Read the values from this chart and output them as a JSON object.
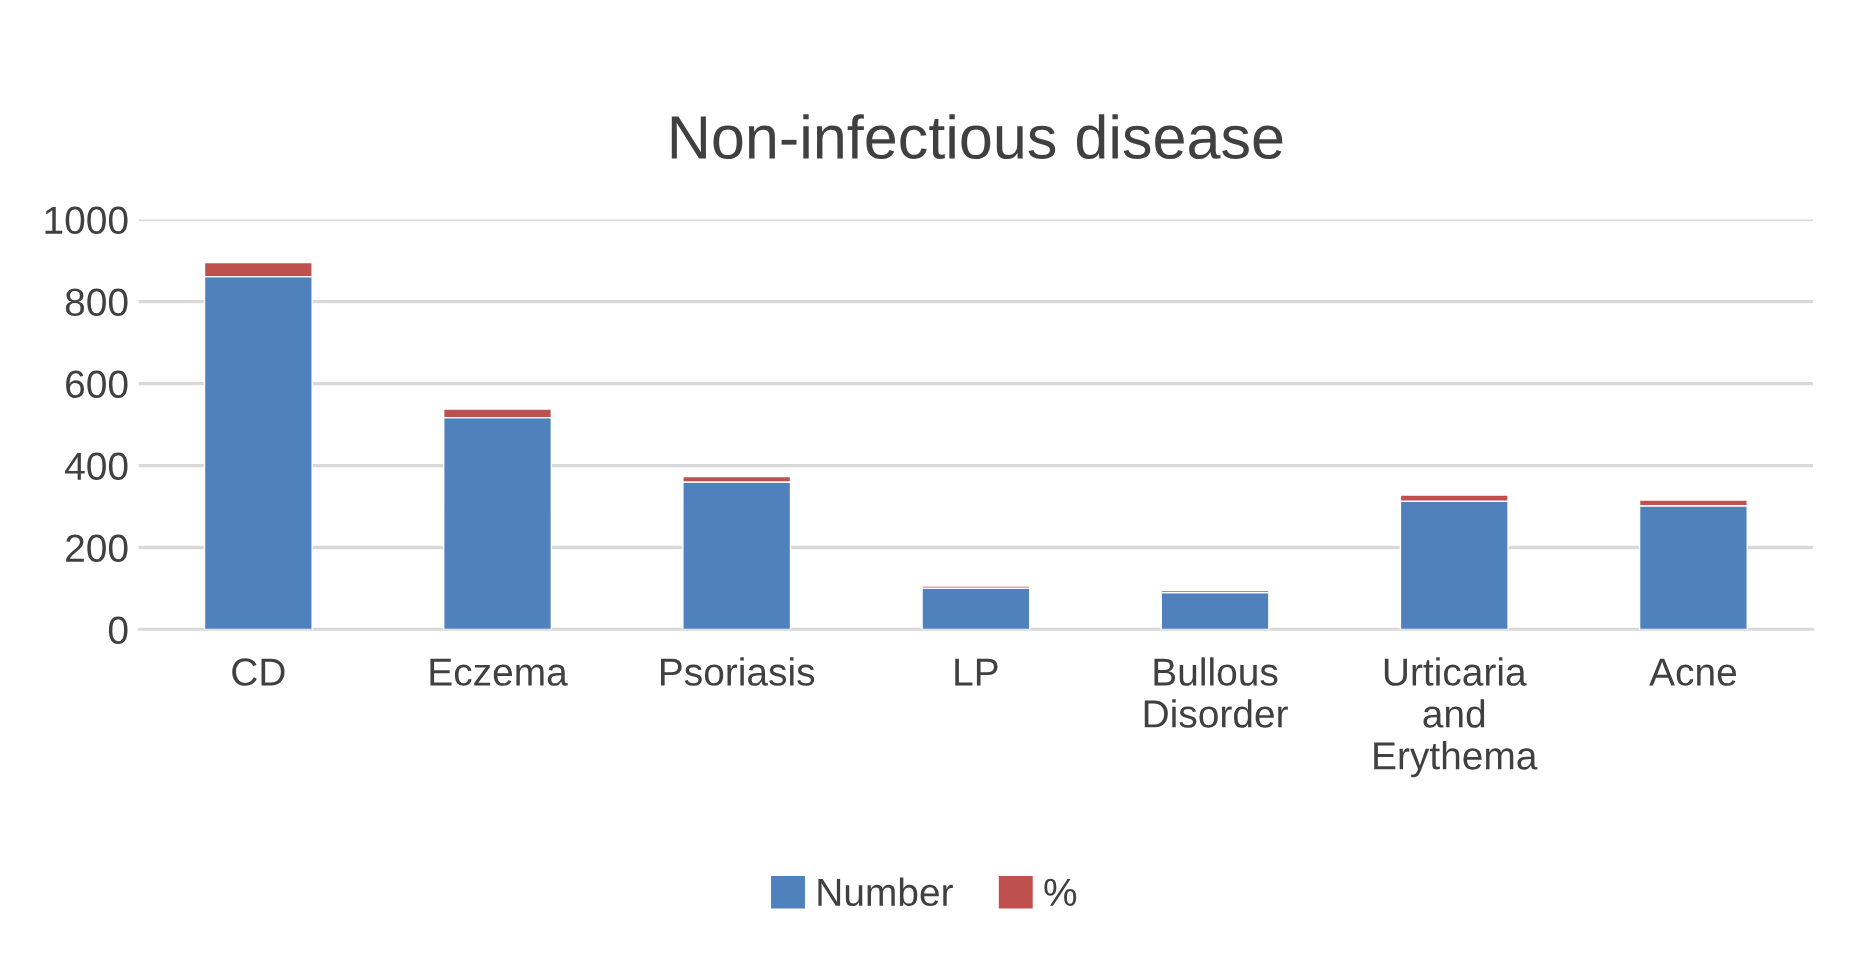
{
  "chart_data": {
    "type": "bar",
    "title": "Non-infectious disease",
    "stacked": true,
    "categories": [
      "CD",
      "Eczema",
      "Psoriasis",
      "LP",
      "Bullous Disorder",
      "Urticaria and Erythema",
      "Acne"
    ],
    "series": [
      {
        "name": "Number",
        "color": "#4f81bd",
        "values": [
          861,
          517,
          360,
          101,
          90,
          313,
          302
        ]
      },
      {
        "name": "%",
        "color": "#c0504d",
        "values": [
          34,
          21,
          13,
          5,
          5,
          15,
          14
        ]
      }
    ],
    "ylim": [
      0,
      1000
    ],
    "yticks": [
      0,
      200,
      400,
      600,
      800,
      1000
    ],
    "grid": "y",
    "legend": "bottom"
  }
}
